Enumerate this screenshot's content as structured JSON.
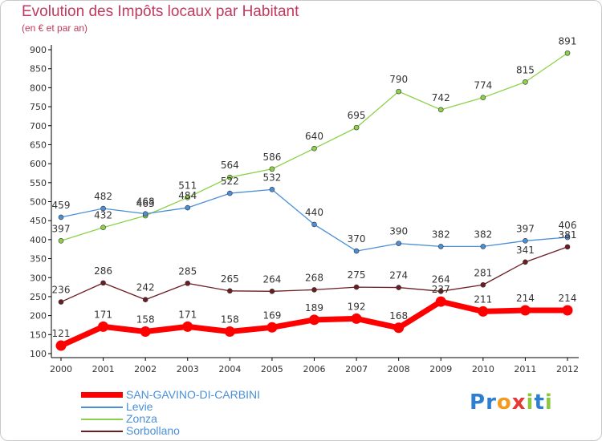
{
  "chart_data": {
    "type": "line",
    "title": "Evolution des Impôts locaux par Habitant",
    "subtitle": "(en € et par an)",
    "x": [
      "2000",
      "2001",
      "2002",
      "2003",
      "2004",
      "2005",
      "2006",
      "2007",
      "2008",
      "2009",
      "2010",
      "2011",
      "2012"
    ],
    "ylim": [
      100,
      900
    ],
    "yticks": [
      100,
      150,
      200,
      250,
      300,
      350,
      400,
      450,
      500,
      550,
      600,
      650,
      700,
      750,
      800,
      850,
      900
    ],
    "grid": false,
    "legend_position": "bottom-left",
    "series": [
      {
        "name": "SAN-GAVINO-DI-CARBINI",
        "color": "#ff0000",
        "values": [
          121,
          171,
          158,
          171,
          158,
          169,
          189,
          192,
          168,
          237,
          211,
          214,
          214
        ],
        "labels": [
          "121",
          "171",
          "158",
          "171",
          "158",
          "169",
          "189",
          "192",
          "168",
          "237",
          "211",
          "214",
          "214"
        ]
      },
      {
        "name": "Levie",
        "color": "#4a8fd8",
        "values": [
          459,
          482,
          468,
          484,
          522,
          532,
          440,
          370,
          390,
          382,
          382,
          397,
          406
        ],
        "labels": [
          "459",
          "482",
          "468",
          "484",
          "522",
          "532",
          "440",
          "370",
          "390",
          "382",
          "382",
          "397",
          "406"
        ]
      },
      {
        "name": "Zonza",
        "color": "#8dd14a",
        "values": [
          397,
          432,
          463,
          511,
          564,
          586,
          640,
          695,
          790,
          742,
          774,
          815,
          891
        ],
        "labels": [
          "397",
          "432",
          "463",
          "511",
          "564",
          "586",
          "640",
          "695",
          "790",
          "742",
          "774",
          "815",
          "891"
        ]
      },
      {
        "name": "Sorbollano",
        "color": "#6b1d22",
        "values": [
          236,
          286,
          242,
          285,
          265,
          264,
          268,
          275,
          274,
          264,
          281,
          341,
          381
        ],
        "labels": [
          "236",
          "286",
          "242",
          "285",
          "265",
          "264",
          "268",
          "275",
          "274",
          "264",
          "281",
          "341",
          "381"
        ]
      }
    ]
  },
  "logo": {
    "letters": [
      "P",
      "r",
      "o",
      "x",
      "i",
      "t",
      "i"
    ]
  }
}
